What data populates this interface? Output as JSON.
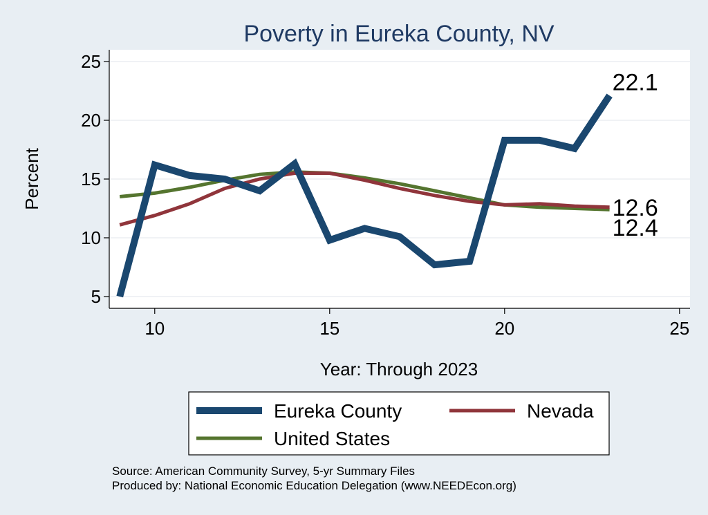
{
  "chart_data": {
    "type": "line",
    "title": "Poverty in Eureka County, NV",
    "xlabel": "Year: Through 2023",
    "ylabel": "Percent",
    "xlim": [
      8.7,
      25.3
    ],
    "ylim": [
      4,
      26
    ],
    "xticks": [
      10,
      15,
      20,
      25
    ],
    "yticks": [
      5,
      10,
      15,
      20,
      25
    ],
    "grid": true,
    "legend_position": "bottom",
    "series": [
      {
        "name": "Eureka County",
        "color": "#1a476f",
        "x": [
          9,
          10,
          11,
          12,
          13,
          14,
          15,
          16,
          17,
          18,
          19,
          20,
          21,
          22,
          23
        ],
        "values": [
          5.0,
          16.2,
          15.3,
          15.0,
          14.0,
          16.3,
          9.8,
          10.8,
          10.1,
          7.7,
          8.0,
          18.3,
          18.3,
          17.6,
          22.1
        ],
        "end_label": "22.1"
      },
      {
        "name": "Nevada",
        "color": "#90353b",
        "x": [
          9,
          10,
          11,
          12,
          13,
          14,
          15,
          16,
          17,
          18,
          19,
          20,
          21,
          22,
          23
        ],
        "values": [
          11.1,
          11.9,
          12.9,
          14.2,
          15.0,
          15.5,
          15.5,
          14.9,
          14.2,
          13.6,
          13.1,
          12.8,
          12.9,
          12.7,
          12.6
        ],
        "end_label": "12.6"
      },
      {
        "name": "United States",
        "color": "#55752f",
        "x": [
          9,
          10,
          11,
          12,
          13,
          14,
          15,
          16,
          17,
          18,
          19,
          20,
          21,
          22,
          23
        ],
        "values": [
          13.5,
          13.8,
          14.3,
          14.9,
          15.4,
          15.6,
          15.5,
          15.1,
          14.6,
          14.0,
          13.4,
          12.8,
          12.6,
          12.5,
          12.4
        ],
        "end_label": "12.4"
      }
    ]
  },
  "source": {
    "line1": "Source: American Community Survey, 5-yr Summary Files",
    "line2": "Produced by: National Economic Education Delegation (www.NEEDEcon.org)"
  }
}
